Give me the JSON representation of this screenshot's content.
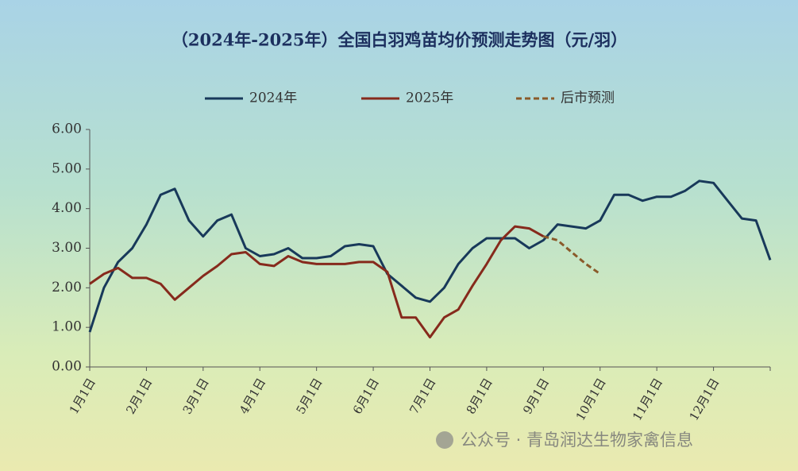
{
  "chart_data": {
    "type": "line",
    "title": "（2024年-2025年）全国白羽鸡苗均价预测走势图（元/羽）",
    "categories": [
      "1月1日",
      null,
      null,
      null,
      "2月1日",
      null,
      null,
      null,
      "3月1日",
      null,
      null,
      null,
      "4月1日",
      null,
      null,
      null,
      "5月1日",
      null,
      null,
      null,
      "6月1日",
      null,
      null,
      null,
      "7月1日",
      null,
      null,
      null,
      "8月1日",
      null,
      null,
      null,
      "9月1日",
      null,
      null,
      null,
      "10月1日",
      null,
      null,
      null,
      "11月1日",
      null,
      null,
      null,
      "12月1日",
      null,
      null,
      null,
      null
    ],
    "series": [
      {
        "name": "2024年",
        "color": "#18395a",
        "dash": false,
        "values": [
          0.88,
          2.0,
          2.65,
          3.0,
          3.6,
          4.35,
          4.5,
          3.7,
          3.3,
          3.7,
          3.85,
          3.0,
          2.8,
          2.85,
          3.0,
          2.75,
          2.75,
          2.8,
          3.05,
          3.1,
          3.05,
          2.35,
          2.05,
          1.75,
          1.65,
          2.0,
          2.6,
          3.0,
          3.25,
          3.25,
          3.25,
          3.0,
          3.2,
          3.6,
          3.55,
          3.5,
          3.7,
          4.35,
          4.35,
          4.2,
          4.3,
          4.3,
          4.45,
          4.7,
          4.65,
          4.2,
          3.75,
          3.7,
          2.7
        ]
      },
      {
        "name": "2025年",
        "color": "#862a1c",
        "dash": false,
        "values": [
          2.1,
          2.35,
          2.5,
          2.25,
          2.25,
          2.1,
          1.7,
          2.0,
          2.3,
          2.55,
          2.85,
          2.9,
          2.6,
          2.55,
          2.8,
          2.65,
          2.6,
          2.6,
          2.6,
          2.65,
          2.65,
          2.4,
          1.25,
          1.25,
          0.75,
          1.25,
          1.45,
          2.05,
          2.6,
          3.2,
          3.55,
          3.5,
          3.3,
          null,
          null,
          null,
          null,
          null,
          null,
          null,
          null,
          null,
          null,
          null,
          null,
          null,
          null,
          null,
          null
        ]
      },
      {
        "name": "后市预测",
        "color": "#8a5a2a",
        "dash": true,
        "values": [
          null,
          null,
          null,
          null,
          null,
          null,
          null,
          null,
          null,
          null,
          null,
          null,
          null,
          null,
          null,
          null,
          null,
          null,
          null,
          null,
          null,
          null,
          null,
          null,
          null,
          null,
          null,
          null,
          null,
          null,
          null,
          null,
          3.3,
          3.2,
          2.9,
          2.6,
          2.35,
          null,
          null,
          null,
          null,
          null,
          null,
          null,
          null,
          null,
          null,
          null,
          null
        ]
      }
    ],
    "ylim": [
      0,
      6
    ],
    "yticks": [
      {
        "value": 0,
        "label": "0.00"
      },
      {
        "value": 1,
        "label": "1.00"
      },
      {
        "value": 2,
        "label": "2.00"
      },
      {
        "value": 3,
        "label": "3.00"
      },
      {
        "value": 4,
        "label": "4.00"
      },
      {
        "value": 5,
        "label": "5.00"
      },
      {
        "value": 6,
        "label": "6.00"
      }
    ],
    "grid": false,
    "watermark": "公众号 · 青岛润达生物家禽信息"
  }
}
